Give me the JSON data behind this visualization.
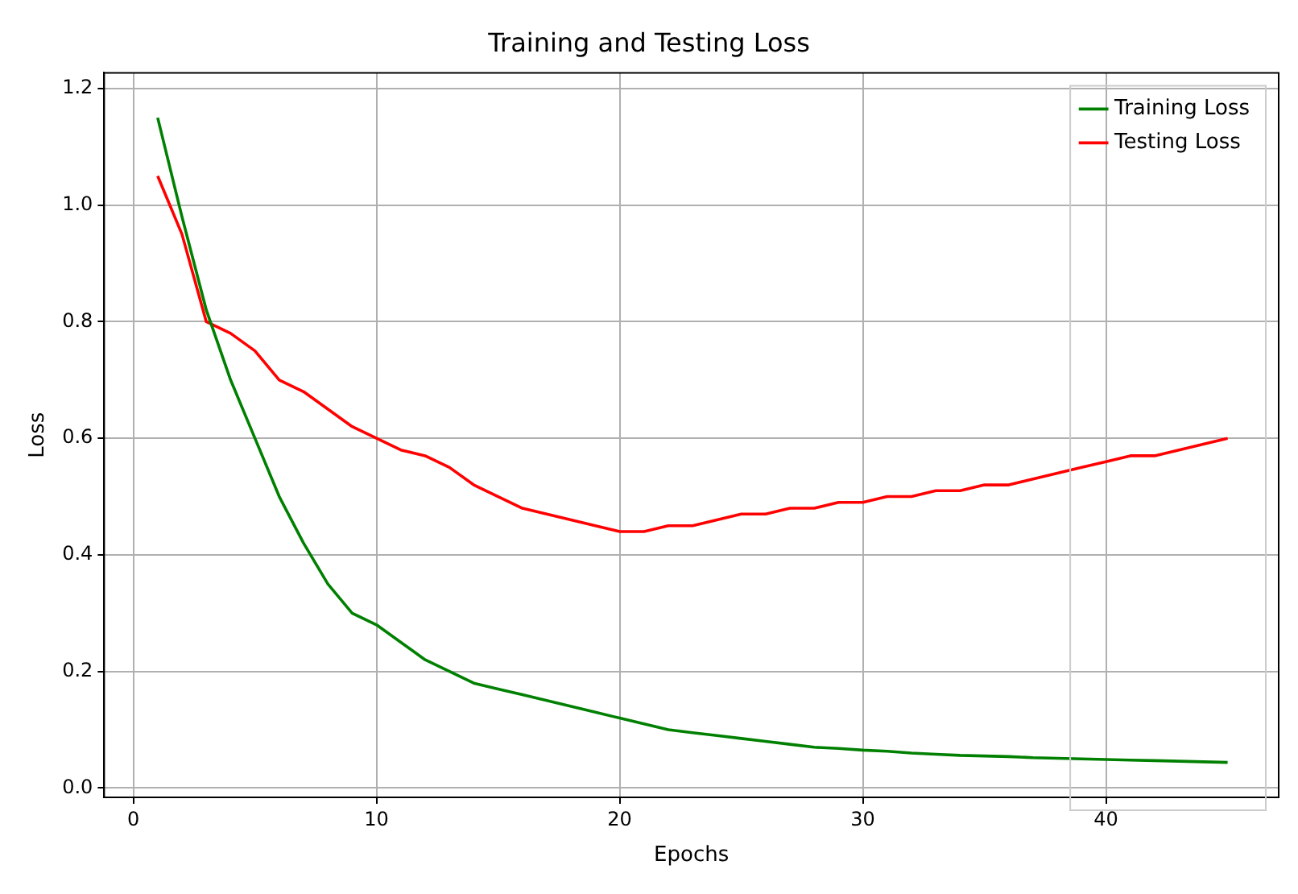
{
  "chart_data": {
    "type": "line",
    "title": "Training and Testing Loss",
    "xlabel": "Epochs",
    "ylabel": "Loss",
    "x": [
      1,
      2,
      3,
      4,
      5,
      6,
      7,
      8,
      9,
      10,
      11,
      12,
      13,
      14,
      15,
      16,
      17,
      18,
      19,
      20,
      21,
      22,
      23,
      24,
      25,
      26,
      27,
      28,
      29,
      30,
      31,
      32,
      33,
      34,
      35,
      36,
      37,
      38,
      39,
      40,
      41,
      42,
      43,
      44,
      45
    ],
    "series": [
      {
        "name": "Training Loss",
        "color": "#008000",
        "values": [
          1.15,
          0.98,
          0.82,
          0.7,
          0.6,
          0.5,
          0.42,
          0.35,
          0.3,
          0.28,
          0.25,
          0.22,
          0.2,
          0.18,
          0.17,
          0.16,
          0.15,
          0.14,
          0.13,
          0.12,
          0.11,
          0.1,
          0.095,
          0.09,
          0.085,
          0.08,
          0.075,
          0.07,
          0.068,
          0.065,
          0.063,
          0.06,
          0.058,
          0.056,
          0.055,
          0.054,
          0.052,
          0.051,
          0.05,
          0.049,
          0.048,
          0.047,
          0.046,
          0.045,
          0.044
        ]
      },
      {
        "name": "Testing Loss",
        "color": "#ff0000",
        "values": [
          1.05,
          0.95,
          0.8,
          0.78,
          0.75,
          0.7,
          0.68,
          0.65,
          0.62,
          0.6,
          0.58,
          0.57,
          0.55,
          0.52,
          0.5,
          0.48,
          0.47,
          0.46,
          0.45,
          0.44,
          0.44,
          0.45,
          0.45,
          0.46,
          0.47,
          0.47,
          0.48,
          0.48,
          0.49,
          0.49,
          0.5,
          0.5,
          0.51,
          0.51,
          0.52,
          0.52,
          0.53,
          0.54,
          0.55,
          0.56,
          0.57,
          0.57,
          0.58,
          0.59,
          0.6
        ]
      }
    ],
    "xlim": [
      -1.2,
      47.1
    ],
    "ylim": [
      -0.016,
      1.227
    ],
    "xticks": [
      0,
      10,
      20,
      30,
      40
    ],
    "yticks": [
      {
        "value": 0,
        "label": "0.0"
      },
      0.2,
      0.4,
      0.6,
      0.8,
      {
        "value": 1,
        "label": "1.0"
      },
      1.2
    ],
    "grid": true,
    "legend": "top right",
    "marker": "none",
    "line_style": "solid"
  }
}
